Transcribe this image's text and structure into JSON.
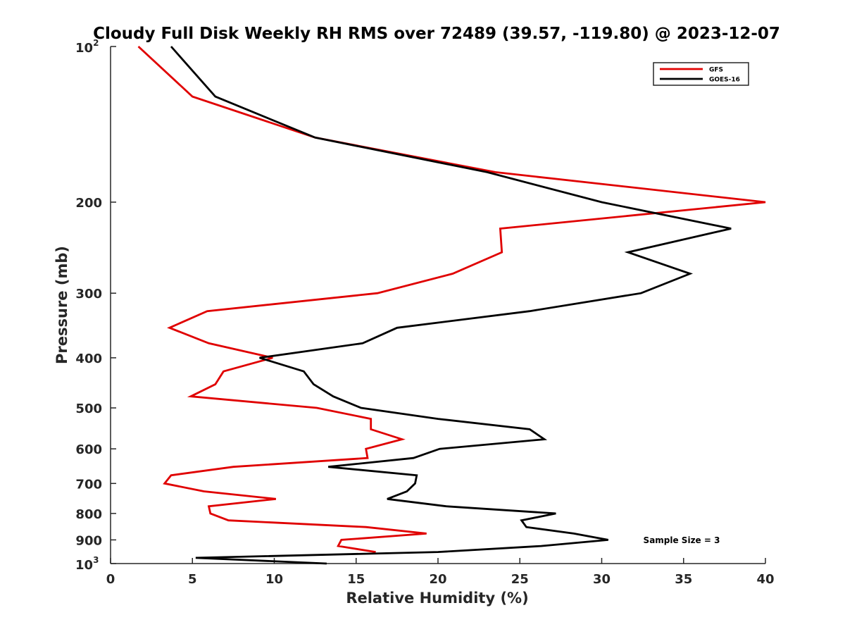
{
  "chart_data": {
    "type": "line",
    "title": "Cloudy Full Disk Weekly RH RMS over 72489 (39.57, -119.80) @ 2023-12-07",
    "xlabel": "Relative Humidity (%)",
    "ylabel": "Pressure (mb)",
    "xlim": [
      0,
      40
    ],
    "ylim": [
      100,
      1000
    ],
    "yscale": "log",
    "y_reversed": true,
    "grid": false,
    "legend_position": "top-right",
    "annotation": "Sample Size = 3",
    "x_ticks": [
      0,
      5,
      10,
      15,
      20,
      25,
      30,
      35,
      40
    ],
    "y_ticks": [
      {
        "value": 100,
        "base": "10",
        "exp": "2"
      },
      {
        "value": 200,
        "label": "200"
      },
      {
        "value": 300,
        "label": "300"
      },
      {
        "value": 400,
        "label": "400"
      },
      {
        "value": 500,
        "label": "500"
      },
      {
        "value": 600,
        "label": "600"
      },
      {
        "value": 700,
        "label": "700"
      },
      {
        "value": 800,
        "label": "800"
      },
      {
        "value": 900,
        "label": "900"
      },
      {
        "value": 1000,
        "base": "10",
        "exp": "3"
      }
    ],
    "series": [
      {
        "name": "GFS",
        "color": "#e00000",
        "points": [
          [
            1.7,
            100
          ],
          [
            5.0,
            125
          ],
          [
            12.5,
            150
          ],
          [
            23.5,
            175
          ],
          [
            40.0,
            200
          ],
          [
            23.8,
            225
          ],
          [
            23.9,
            250
          ],
          [
            20.9,
            275
          ],
          [
            16.3,
            300
          ],
          [
            5.9,
            325
          ],
          [
            3.6,
            350
          ],
          [
            6.0,
            375
          ],
          [
            9.9,
            400
          ],
          [
            6.9,
            425
          ],
          [
            6.4,
            450
          ],
          [
            4.9,
            475
          ],
          [
            12.6,
            500
          ],
          [
            15.9,
            525
          ],
          [
            15.9,
            550
          ],
          [
            17.8,
            575
          ],
          [
            15.6,
            600
          ],
          [
            15.7,
            625
          ],
          [
            7.5,
            650
          ],
          [
            3.7,
            675
          ],
          [
            3.3,
            700
          ],
          [
            5.7,
            725
          ],
          [
            10.1,
            750
          ],
          [
            6.0,
            775
          ],
          [
            6.1,
            800
          ],
          [
            7.2,
            825
          ],
          [
            15.6,
            850
          ],
          [
            19.3,
            875
          ],
          [
            14.1,
            900
          ],
          [
            13.9,
            925
          ],
          [
            16.2,
            950
          ]
        ]
      },
      {
        "name": "GOES-16",
        "color": "#000000",
        "points": [
          [
            3.7,
            100
          ],
          [
            6.4,
            125
          ],
          [
            12.5,
            150
          ],
          [
            23.0,
            175
          ],
          [
            30.0,
            200
          ],
          [
            37.9,
            225
          ],
          [
            31.6,
            250
          ],
          [
            35.4,
            275
          ],
          [
            32.4,
            300
          ],
          [
            25.6,
            325
          ],
          [
            17.5,
            350
          ],
          [
            15.4,
            375
          ],
          [
            9.1,
            400
          ],
          [
            11.8,
            425
          ],
          [
            12.4,
            450
          ],
          [
            13.6,
            475
          ],
          [
            15.3,
            500
          ],
          [
            20.0,
            525
          ],
          [
            25.6,
            550
          ],
          [
            26.5,
            575
          ],
          [
            20.1,
            600
          ],
          [
            18.5,
            625
          ],
          [
            13.3,
            650
          ],
          [
            18.7,
            675
          ],
          [
            18.6,
            700
          ],
          [
            18.1,
            725
          ],
          [
            16.9,
            750
          ],
          [
            20.5,
            775
          ],
          [
            27.2,
            800
          ],
          [
            25.1,
            825
          ],
          [
            25.4,
            850
          ],
          [
            28.3,
            875
          ],
          [
            30.4,
            900
          ],
          [
            26.3,
            925
          ],
          [
            20.0,
            950
          ],
          [
            5.2,
            975
          ],
          [
            13.2,
            1000
          ]
        ]
      }
    ]
  }
}
